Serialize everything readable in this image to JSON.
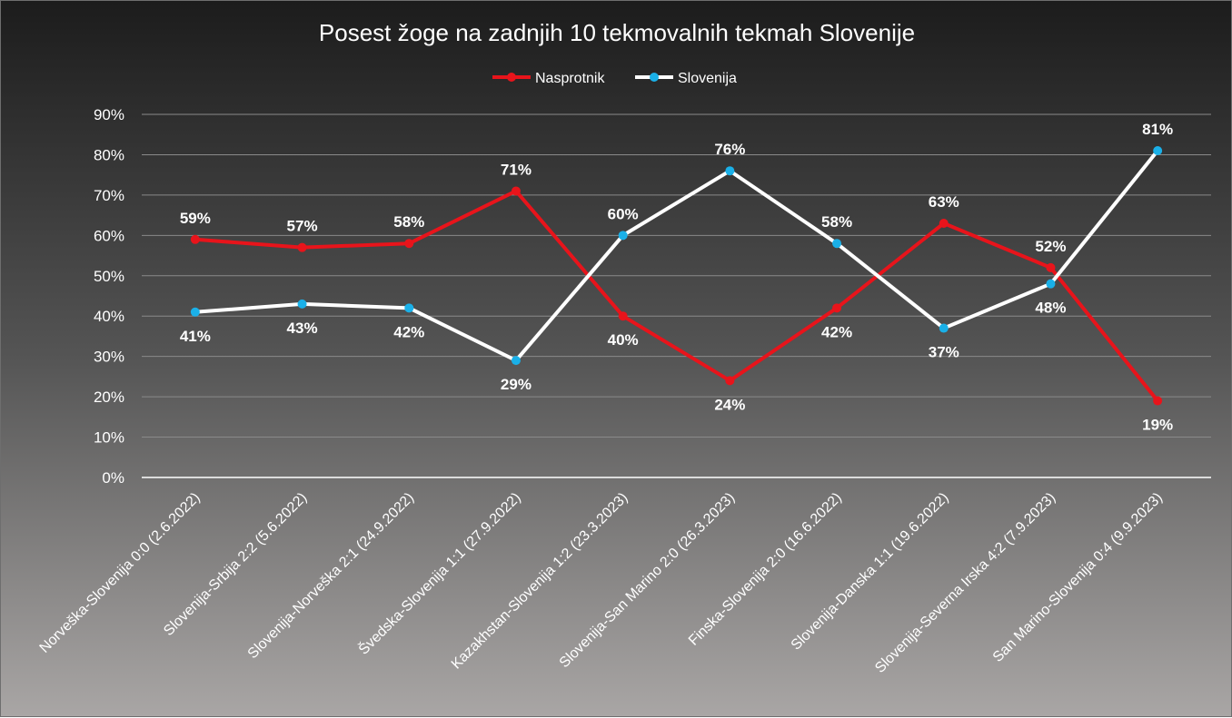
{
  "chart_data": {
    "type": "line",
    "title": "Posest žoge na zadnjih 10 tekmovalnih tekmah Slovenije",
    "categories": [
      "Norveška-Slovenija 0:0 (2.6.2022)",
      "Slovenija-Srbija 2:2 (5.6.2022)",
      "Slovenija-Norveška 2:1 (24.9.2022)",
      "Švedska-Slovenija 1:1 (27.9.2022)",
      "Kazakhstan-Slovenija 1:2 (23.3.2023)",
      "Slovenija-San Marino 2:0 (26.3.2023)",
      "Finska-Slovenija 2:0 (16.6.2022)",
      "Slovenija-Danska 1:1 (19.6.2022)",
      "Slovenija-Severna Irska 4:2 (7.9.2023)",
      "San Marino-Slovenija 0:4 (9.9.2023)"
    ],
    "series": [
      {
        "name": "Nasprotnik",
        "values": [
          59,
          57,
          58,
          71,
          40,
          24,
          42,
          63,
          52,
          19
        ],
        "labels": [
          "59%",
          "57%",
          "58%",
          "71%",
          "40%",
          "24%",
          "42%",
          "63%",
          "52%",
          "19%"
        ],
        "color": "#e8141b",
        "marker_color": "#e8141b"
      },
      {
        "name": "Slovenija",
        "values": [
          41,
          43,
          42,
          29,
          60,
          76,
          58,
          37,
          48,
          81
        ],
        "labels": [
          "41%",
          "43%",
          "42%",
          "29%",
          "60%",
          "76%",
          "58%",
          "37%",
          "48%",
          "81%"
        ],
        "color": "#ffffff",
        "marker_color": "#1ab0e8"
      }
    ],
    "ylim": [
      0,
      90
    ],
    "yticks": [
      "0%",
      "10%",
      "20%",
      "30%",
      "40%",
      "50%",
      "60%",
      "70%",
      "80%",
      "90%"
    ],
    "grid": true,
    "legend_position": "top-center"
  }
}
